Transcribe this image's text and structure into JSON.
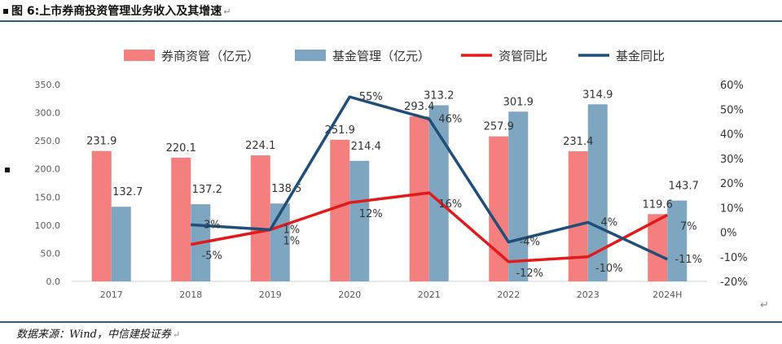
{
  "header": {
    "title": "图 6:上市券商投资管理业务收入及其增速",
    "return_mark": "↵"
  },
  "footer": {
    "source": "数据来源：Wind，中信建投证券",
    "return_mark": "↵"
  },
  "chart_data": {
    "type": "bar",
    "categories": [
      "2017",
      "2018",
      "2019",
      "2020",
      "2021",
      "2022",
      "2023",
      "2024H"
    ],
    "series": [
      {
        "name": "券商资管（亿元）",
        "kind": "bar",
        "axis": "left",
        "color": "#f47f7f",
        "values": [
          231.9,
          220.1,
          224.1,
          251.9,
          293.4,
          257.9,
          231.4,
          119.6
        ],
        "labels": [
          "231.9",
          "220.1",
          "224.1",
          "251.9",
          "293.4",
          "257.9",
          "231.4",
          "119.6"
        ]
      },
      {
        "name": "基金管理（亿元）",
        "kind": "bar",
        "axis": "left",
        "color": "#7fa6c0",
        "values": [
          132.7,
          137.2,
          138.5,
          214.4,
          313.2,
          301.9,
          314.9,
          143.7
        ],
        "labels": [
          "132.7",
          "137.2",
          "138.5",
          "214.4",
          "313.2",
          "301.9",
          "314.9",
          "143.7"
        ]
      },
      {
        "name": "资管同比",
        "kind": "line",
        "axis": "right",
        "color": "#e31a1c",
        "values": [
          null,
          -5,
          1,
          12,
          16,
          -12,
          -10,
          7
        ],
        "labels": [
          "",
          "-5%",
          "1%",
          "12%",
          "16%",
          "-12%",
          "-10%",
          "7%"
        ]
      },
      {
        "name": "基金同比",
        "kind": "line",
        "axis": "right",
        "color": "#1f4e79",
        "values": [
          null,
          3,
          1,
          55,
          46,
          -4,
          4,
          -11
        ],
        "labels": [
          "",
          "3%",
          "1%",
          "55%",
          "46%",
          "-4%",
          "4%",
          "-11%"
        ]
      }
    ],
    "ylim_left": [
      0,
      350
    ],
    "yticks_left": [
      "0.0",
      "50.0",
      "100.0",
      "150.0",
      "200.0",
      "250.0",
      "300.0",
      "350.0"
    ],
    "ylim_right": [
      -20,
      60
    ],
    "yticks_right": [
      "-20%",
      "-10%",
      "0%",
      "10%",
      "20%",
      "30%",
      "40%",
      "50%",
      "60%"
    ],
    "legend_position": "top",
    "grid": false
  }
}
